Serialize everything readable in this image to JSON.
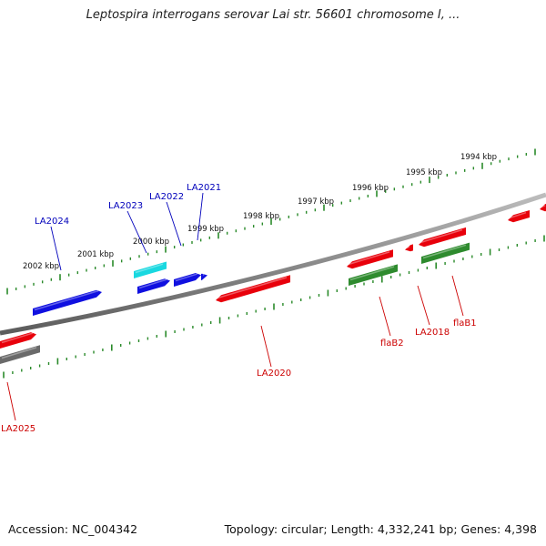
{
  "title": "Leptospira interrogans serovar Lai str. 56601 chromosome I, ...",
  "footer": {
    "accession": "Accession: NC_004342",
    "topology": "Topology: circular; Length: 4,332,241 bp; Genes: 4,398"
  },
  "colors": {
    "forward_gene": "#e8000b",
    "reverse_gene": "#1010e0",
    "highlight_gene": "#19d8e0",
    "other_gene": "#2e8b2e",
    "grey_gene": "#6a6a6a",
    "forward_label": "#cc0000",
    "reverse_label": "#0000bb",
    "tick": "#2a8a2a",
    "backbone": "#808080"
  },
  "kbp_labels": [
    "1994 kbp",
    "1995 kbp",
    "1996 kbp",
    "1997 kbp",
    "1998 kbp",
    "1999 kbp",
    "2000 kbp",
    "2001 kbp",
    "2002 kbp"
  ],
  "gene_labels": [
    "LA2021",
    "LA2022",
    "LA2023",
    "LA2024",
    "flaB1",
    "LA2018",
    "flaB2",
    "LA2020",
    "LA2025"
  ]
}
